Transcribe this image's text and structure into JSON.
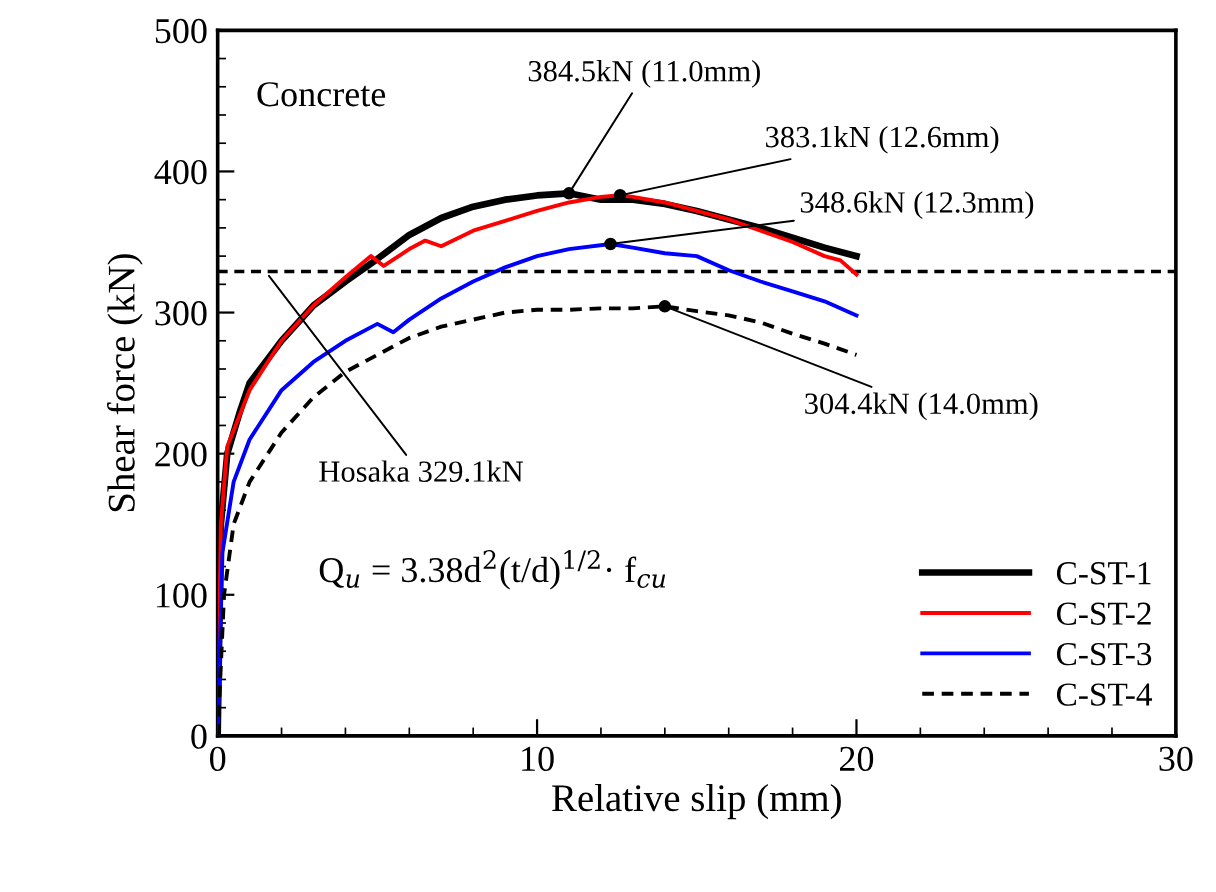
{
  "chart_data": {
    "type": "line",
    "xlabel": "Relative slip (mm)",
    "ylabel": "Shear force (kN)",
    "xlim": [
      0,
      30
    ],
    "xticks": [
      0,
      10,
      20,
      30
    ],
    "ylim": [
      0,
      500
    ],
    "yticks": [
      0,
      100,
      200,
      300,
      400,
      500
    ],
    "grid": false,
    "legend": "bottom right",
    "marker": "none",
    "series": [
      {
        "name": "C-ST-1",
        "color": "#000000",
        "line_style": "solid",
        "x": [
          0,
          0.1,
          0.3,
          0.7,
          1,
          2,
          3,
          4,
          5,
          6,
          7,
          8,
          9,
          10,
          11,
          12,
          13,
          14,
          15,
          16,
          17,
          18,
          19,
          20
        ],
        "values": [
          0,
          150,
          200,
          230,
          250,
          280,
          305,
          322,
          338,
          355,
          367,
          375,
          380,
          383,
          384.5,
          380,
          380,
          377,
          372,
          366,
          360,
          353,
          346,
          340
        ]
      },
      {
        "name": "C-ST-2",
        "color": "#ff0000",
        "line_style": "solid",
        "x": [
          0,
          0.1,
          0.3,
          1,
          2,
          3,
          4,
          4.8,
          5.2,
          6,
          6.5,
          7,
          8,
          9,
          10,
          11,
          12,
          12.6,
          13,
          14,
          15,
          16,
          17,
          18,
          19,
          19.5,
          20
        ],
        "values": [
          0,
          150,
          205,
          245,
          280,
          305,
          325,
          340,
          333,
          345,
          351,
          347,
          358,
          365,
          372,
          378,
          382,
          383.1,
          382,
          378,
          372,
          366,
          358,
          350,
          340,
          337,
          327
        ]
      },
      {
        "name": "C-ST-3",
        "color": "#0000ff",
        "line_style": "solid",
        "x": [
          0,
          0.15,
          0.5,
          1,
          2,
          3,
          4,
          5,
          5.5,
          6,
          7,
          8,
          9,
          10,
          11,
          12.3,
          13,
          14,
          15,
          16,
          17,
          18,
          19,
          20
        ],
        "values": [
          0,
          130,
          180,
          210,
          245,
          265,
          280,
          292,
          286,
          295,
          310,
          322,
          332,
          340,
          345,
          348.6,
          346,
          342,
          340,
          330,
          322,
          315,
          308,
          298
        ]
      },
      {
        "name": "C-ST-4",
        "color": "#000000",
        "line_style": "dashed",
        "x": [
          0,
          0.2,
          0.5,
          1,
          2,
          3,
          4,
          5,
          6,
          7,
          8,
          9,
          10,
          11,
          12,
          13,
          14,
          15,
          16,
          17,
          18,
          19,
          20
        ],
        "values": [
          0,
          100,
          150,
          180,
          215,
          240,
          258,
          270,
          282,
          290,
          295,
          300,
          302,
          302,
          303,
          303,
          304.4,
          301,
          298,
          293,
          285,
          278,
          270
        ]
      }
    ],
    "ref_lines": [
      {
        "axis": "y",
        "value": 329.1,
        "color": "#000000",
        "line_style": "dashed"
      }
    ],
    "annotations": [
      "Concrete",
      "Q$_{u}$ = 3.38d$^{2}$(t/d)$^{1/2}$· f$_{cu}$",
      {
        "text": "384.5kN (11.0mm)",
        "x": 11.0,
        "y": 384.5
      },
      {
        "text": "383.1kN (12.6mm)",
        "x": 12.6,
        "y": 383.1
      },
      {
        "text": "348.6kN (12.3mm)",
        "x": 12.3,
        "y": 348.6
      },
      {
        "text": "304.4kN (14.0mm)",
        "x": 14.0,
        "y": 304.4
      },
      {
        "text": "Hosaka 329.1kN",
        "x": 1.5,
        "y": 329.1
      }
    ]
  }
}
